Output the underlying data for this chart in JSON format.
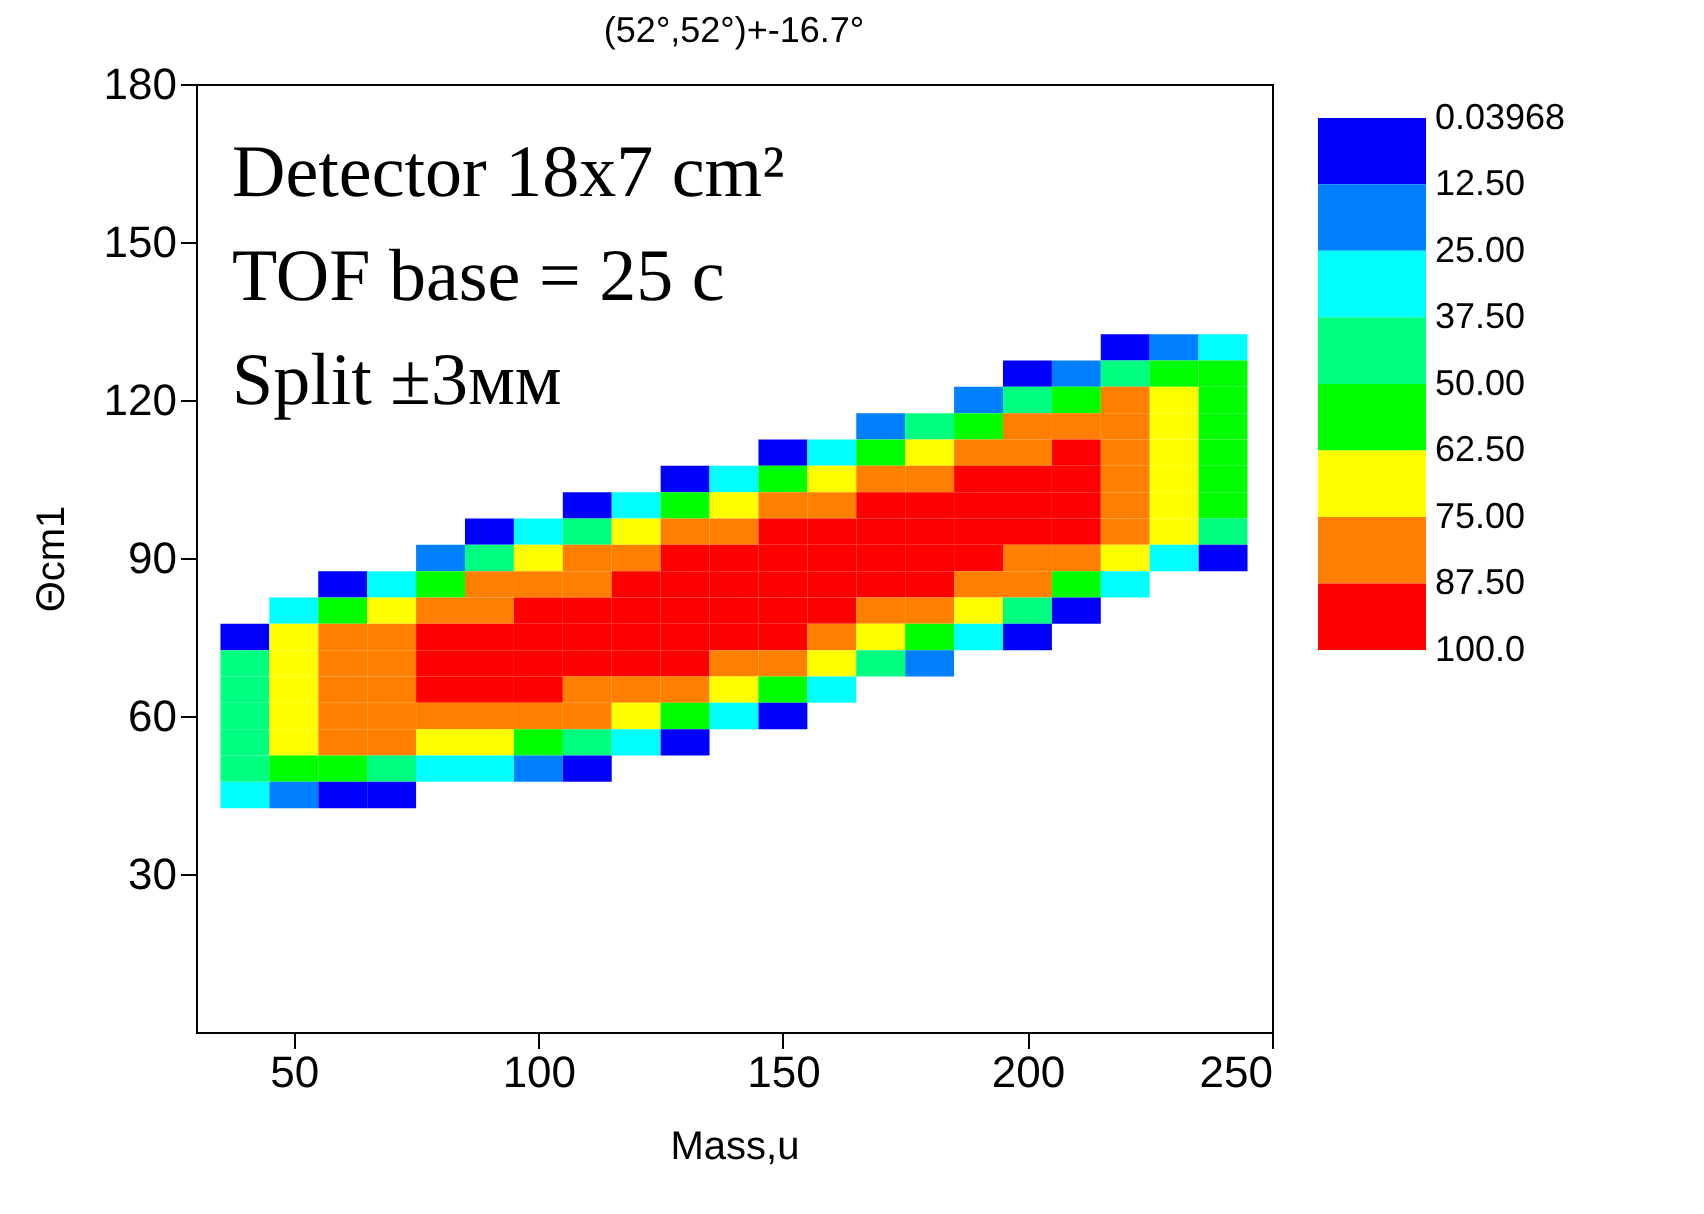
{
  "chart_data": {
    "type": "scatter",
    "marker": "square",
    "title": "(52°,52°)+-16.7°",
    "xlabel": "Mass,u",
    "ylabel": "Θcm1",
    "annotations": [
      "Detector 18x7 cm²",
      "TOF base = 25 c",
      "Split ±3мм"
    ],
    "xlim": [
      30,
      250
    ],
    "xticks": [
      50,
      100,
      150,
      200,
      250
    ],
    "ylim": [
      0,
      180
    ],
    "yticks": [
      30,
      60,
      90,
      120,
      150,
      180
    ],
    "x": [
      40,
      50,
      60,
      70,
      80,
      90,
      100,
      110,
      120,
      130,
      140,
      150,
      160,
      170,
      180,
      190,
      200,
      210,
      220,
      230,
      240
    ],
    "series": [
      {
        "values": [
          null,
          null,
          null,
          null,
          null,
          null,
          null,
          null,
          null,
          null,
          null,
          null,
          null,
          null,
          null,
          null,
          null,
          null,
          130,
          130,
          130
        ],
        "colors": [
          null,
          null,
          null,
          null,
          null,
          null,
          null,
          null,
          null,
          null,
          null,
          null,
          null,
          null,
          null,
          null,
          null,
          null,
          "#0000ff",
          "#0080ff",
          "#00ffff"
        ]
      },
      {
        "values": [
          null,
          null,
          null,
          null,
          null,
          null,
          null,
          null,
          null,
          null,
          null,
          null,
          null,
          null,
          null,
          null,
          125,
          125,
          125,
          125,
          125
        ],
        "colors": [
          null,
          null,
          null,
          null,
          null,
          null,
          null,
          null,
          null,
          null,
          null,
          null,
          null,
          null,
          null,
          null,
          "#0000ff",
          "#0080ff",
          "#00ff80",
          "#00ff00",
          "#00ff00"
        ]
      },
      {
        "values": [
          null,
          null,
          null,
          null,
          null,
          null,
          null,
          null,
          null,
          null,
          null,
          null,
          null,
          null,
          null,
          120,
          120,
          120,
          120,
          120,
          120
        ],
        "colors": [
          null,
          null,
          null,
          null,
          null,
          null,
          null,
          null,
          null,
          null,
          null,
          null,
          null,
          null,
          null,
          "#0080ff",
          "#00ff80",
          "#00ff00",
          "#ff8000",
          "#ffff00",
          "#00ff00"
        ]
      },
      {
        "values": [
          null,
          null,
          null,
          null,
          null,
          null,
          null,
          null,
          null,
          null,
          null,
          null,
          null,
          115,
          115,
          115,
          115,
          115,
          115,
          115,
          115
        ],
        "colors": [
          null,
          null,
          null,
          null,
          null,
          null,
          null,
          null,
          null,
          null,
          null,
          null,
          null,
          "#0080ff",
          "#00ff80",
          "#00ff00",
          "#ff8000",
          "#ff8000",
          "#ff8000",
          "#ffff00",
          "#00ff00"
        ]
      },
      {
        "values": [
          null,
          null,
          null,
          null,
          null,
          null,
          null,
          null,
          null,
          null,
          null,
          110,
          110,
          110,
          110,
          110,
          110,
          110,
          110,
          110,
          110
        ],
        "colors": [
          null,
          null,
          null,
          null,
          null,
          null,
          null,
          null,
          null,
          null,
          null,
          "#0000ff",
          "#00ffff",
          "#00ff00",
          "#ffff00",
          "#ff8000",
          "#ff8000",
          "#ff0000",
          "#ff8000",
          "#ffff00",
          "#00ff00"
        ]
      },
      {
        "values": [
          null,
          null,
          null,
          null,
          null,
          null,
          null,
          null,
          null,
          105,
          105,
          105,
          105,
          105,
          105,
          105,
          105,
          105,
          105,
          105,
          105
        ],
        "colors": [
          null,
          null,
          null,
          null,
          null,
          null,
          null,
          null,
          null,
          "#0000ff",
          "#00ffff",
          "#00ff00",
          "#ffff00",
          "#ff8000",
          "#ff8000",
          "#ff0000",
          "#ff0000",
          "#ff0000",
          "#ff8000",
          "#ffff00",
          "#00ff00"
        ]
      },
      {
        "values": [
          null,
          null,
          null,
          null,
          null,
          null,
          null,
          100,
          100,
          100,
          100,
          100,
          100,
          100,
          100,
          100,
          100,
          100,
          100,
          100,
          100
        ],
        "colors": [
          null,
          null,
          null,
          null,
          null,
          null,
          null,
          "#0000ff",
          "#00ffff",
          "#00ff00",
          "#ffff00",
          "#ff8000",
          "#ff8000",
          "#ff0000",
          "#ff0000",
          "#ff0000",
          "#ff0000",
          "#ff0000",
          "#ff8000",
          "#ffff00",
          "#00ff00"
        ]
      },
      {
        "values": [
          null,
          null,
          null,
          null,
          null,
          95,
          95,
          95,
          95,
          95,
          95,
          95,
          95,
          95,
          95,
          95,
          95,
          95,
          95,
          95,
          95
        ],
        "colors": [
          null,
          null,
          null,
          null,
          null,
          "#0000ff",
          "#00ffff",
          "#00ff80",
          "#ffff00",
          "#ff8000",
          "#ff8000",
          "#ff0000",
          "#ff0000",
          "#ff0000",
          "#ff0000",
          "#ff0000",
          "#ff0000",
          "#ff0000",
          "#ff8000",
          "#ffff00",
          "#00ff80"
        ]
      },
      {
        "values": [
          null,
          null,
          null,
          null,
          90,
          90,
          90,
          90,
          90,
          90,
          90,
          90,
          90,
          90,
          90,
          90,
          90,
          90,
          90,
          90,
          90
        ],
        "colors": [
          null,
          null,
          null,
          null,
          "#0080ff",
          "#00ff80",
          "#ffff00",
          "#ff8000",
          "#ff8000",
          "#ff0000",
          "#ff0000",
          "#ff0000",
          "#ff0000",
          "#ff0000",
          "#ff0000",
          "#ff0000",
          "#ff8000",
          "#ff8000",
          "#ffff00",
          "#00ffff",
          "#0000ff"
        ]
      },
      {
        "values": [
          null,
          null,
          85,
          85,
          85,
          85,
          85,
          85,
          85,
          85,
          85,
          85,
          85,
          85,
          85,
          85,
          85,
          85,
          85,
          null,
          null
        ],
        "colors": [
          null,
          null,
          "#0000ff",
          "#00ffff",
          "#00ff00",
          "#ff8000",
          "#ff8000",
          "#ff8000",
          "#ff0000",
          "#ff0000",
          "#ff0000",
          "#ff0000",
          "#ff0000",
          "#ff0000",
          "#ff0000",
          "#ff8000",
          "#ff8000",
          "#00ff00",
          "#00ffff",
          null,
          null
        ]
      },
      {
        "values": [
          null,
          80,
          80,
          80,
          80,
          80,
          80,
          80,
          80,
          80,
          80,
          80,
          80,
          80,
          80,
          80,
          80,
          80,
          null,
          null,
          null
        ],
        "colors": [
          null,
          "#00ffff",
          "#00ff00",
          "#ffff00",
          "#ff8000",
          "#ff8000",
          "#ff0000",
          "#ff0000",
          "#ff0000",
          "#ff0000",
          "#ff0000",
          "#ff0000",
          "#ff0000",
          "#ff8000",
          "#ff8000",
          "#ffff00",
          "#00ff80",
          "#0000ff",
          null,
          null,
          null
        ]
      },
      {
        "values": [
          75,
          75,
          75,
          75,
          75,
          75,
          75,
          75,
          75,
          75,
          75,
          75,
          75,
          75,
          75,
          75,
          75,
          null,
          null,
          null,
          null
        ],
        "colors": [
          "#0000ff",
          "#ffff00",
          "#ff8000",
          "#ff8000",
          "#ff0000",
          "#ff0000",
          "#ff0000",
          "#ff0000",
          "#ff0000",
          "#ff0000",
          "#ff0000",
          "#ff0000",
          "#ff8000",
          "#ffff00",
          "#00ff00",
          "#00ffff",
          "#0000ff",
          null,
          null,
          null,
          null
        ]
      },
      {
        "values": [
          70,
          70,
          70,
          70,
          70,
          70,
          70,
          70,
          70,
          70,
          70,
          70,
          70,
          70,
          70,
          null,
          null,
          null,
          null,
          null,
          null
        ],
        "colors": [
          "#00ff80",
          "#ffff00",
          "#ff8000",
          "#ff8000",
          "#ff0000",
          "#ff0000",
          "#ff0000",
          "#ff0000",
          "#ff0000",
          "#ff0000",
          "#ff8000",
          "#ff8000",
          "#ffff00",
          "#00ff80",
          "#0080ff",
          null,
          null,
          null,
          null,
          null,
          null
        ]
      },
      {
        "values": [
          65,
          65,
          65,
          65,
          65,
          65,
          65,
          65,
          65,
          65,
          65,
          65,
          65,
          null,
          null,
          null,
          null,
          null,
          null,
          null,
          null
        ],
        "colors": [
          "#00ff80",
          "#ffff00",
          "#ff8000",
          "#ff8000",
          "#ff0000",
          "#ff0000",
          "#ff0000",
          "#ff8000",
          "#ff8000",
          "#ff8000",
          "#ffff00",
          "#00ff00",
          "#00ffff",
          null,
          null,
          null,
          null,
          null,
          null,
          null,
          null
        ]
      },
      {
        "values": [
          60,
          60,
          60,
          60,
          60,
          60,
          60,
          60,
          60,
          60,
          60,
          60,
          null,
          null,
          null,
          null,
          null,
          null,
          null,
          null,
          null
        ],
        "colors": [
          "#00ff80",
          "#ffff00",
          "#ff8000",
          "#ff8000",
          "#ff8000",
          "#ff8000",
          "#ff8000",
          "#ff8000",
          "#ffff00",
          "#00ff00",
          "#00ffff",
          "#0000ff",
          null,
          null,
          null,
          null,
          null,
          null,
          null,
          null,
          null
        ]
      },
      {
        "values": [
          55,
          55,
          55,
          55,
          55,
          55,
          55,
          55,
          55,
          55,
          null,
          null,
          null,
          null,
          null,
          null,
          null,
          null,
          null,
          null,
          null
        ],
        "colors": [
          "#00ff80",
          "#ffff00",
          "#ff8000",
          "#ff8000",
          "#ffff00",
          "#ffff00",
          "#00ff00",
          "#00ff80",
          "#00ffff",
          "#0000ff",
          null,
          null,
          null,
          null,
          null,
          null,
          null,
          null,
          null,
          null,
          null
        ]
      },
      {
        "values": [
          50,
          50,
          50,
          50,
          50,
          50,
          50,
          50,
          null,
          null,
          null,
          null,
          null,
          null,
          null,
          null,
          null,
          null,
          null,
          null,
          null
        ],
        "colors": [
          "#00ff80",
          "#00ff00",
          "#00ff00",
          "#00ff80",
          "#00ffff",
          "#00ffff",
          "#0080ff",
          "#0000ff",
          null,
          null,
          null,
          null,
          null,
          null,
          null,
          null,
          null,
          null,
          null,
          null,
          null
        ]
      },
      {
        "values": [
          45,
          45,
          45,
          45,
          null,
          null,
          null,
          null,
          null,
          null,
          null,
          null,
          null,
          null,
          null,
          null,
          null,
          null,
          null,
          null,
          null
        ],
        "colors": [
          "#00ffff",
          "#0080ff",
          "#0000ff",
          "#0000ff",
          null,
          null,
          null,
          null,
          null,
          null,
          null,
          null,
          null,
          null,
          null,
          null,
          null,
          null,
          null,
          null,
          null
        ]
      }
    ],
    "clim": [
      0.03968,
      100
    ],
    "cticks": [
      0.03968,
      {
        "value": 12.5,
        "label": "12.50"
      },
      {
        "value": 25,
        "label": "25.00"
      },
      {
        "value": 37.5,
        "label": "37.50"
      },
      {
        "value": 50,
        "label": "50.00"
      },
      {
        "value": 62.5,
        "label": "62.50"
      },
      {
        "value": 75,
        "label": "75.00"
      },
      {
        "value": 87.5,
        "label": "87.50"
      },
      {
        "value": 100,
        "label": "100.0"
      }
    ],
    "colors": [
      "#0000ff",
      "#0080ff",
      "#00ffff",
      "#00ff80",
      "#00ff00",
      "#ffff00",
      "#ff8000",
      "#ff0000"
    ]
  }
}
